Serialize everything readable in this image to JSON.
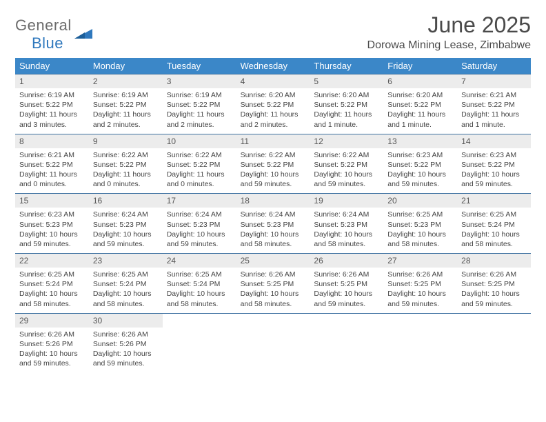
{
  "brand": {
    "word1": "General",
    "word2": "Blue",
    "accent": "#2f78bd",
    "gray": "#6b6b6b"
  },
  "title": "June 2025",
  "location": "Dorowa Mining Lease, Zimbabwe",
  "colors": {
    "header_bg": "#3b87c8",
    "header_text": "#ffffff",
    "daynum_bg": "#ececec",
    "week_border": "#3b6fa0",
    "body_text": "#444"
  },
  "weekdays": [
    "Sunday",
    "Monday",
    "Tuesday",
    "Wednesday",
    "Thursday",
    "Friday",
    "Saturday"
  ],
  "weeks": [
    [
      {
        "n": "1",
        "sr": "6:19 AM",
        "ss": "5:22 PM",
        "dl": "11 hours and 3 minutes."
      },
      {
        "n": "2",
        "sr": "6:19 AM",
        "ss": "5:22 PM",
        "dl": "11 hours and 2 minutes."
      },
      {
        "n": "3",
        "sr": "6:19 AM",
        "ss": "5:22 PM",
        "dl": "11 hours and 2 minutes."
      },
      {
        "n": "4",
        "sr": "6:20 AM",
        "ss": "5:22 PM",
        "dl": "11 hours and 2 minutes."
      },
      {
        "n": "5",
        "sr": "6:20 AM",
        "ss": "5:22 PM",
        "dl": "11 hours and 1 minute."
      },
      {
        "n": "6",
        "sr": "6:20 AM",
        "ss": "5:22 PM",
        "dl": "11 hours and 1 minute."
      },
      {
        "n": "7",
        "sr": "6:21 AM",
        "ss": "5:22 PM",
        "dl": "11 hours and 1 minute."
      }
    ],
    [
      {
        "n": "8",
        "sr": "6:21 AM",
        "ss": "5:22 PM",
        "dl": "11 hours and 0 minutes."
      },
      {
        "n": "9",
        "sr": "6:22 AM",
        "ss": "5:22 PM",
        "dl": "11 hours and 0 minutes."
      },
      {
        "n": "10",
        "sr": "6:22 AM",
        "ss": "5:22 PM",
        "dl": "11 hours and 0 minutes."
      },
      {
        "n": "11",
        "sr": "6:22 AM",
        "ss": "5:22 PM",
        "dl": "10 hours and 59 minutes."
      },
      {
        "n": "12",
        "sr": "6:22 AM",
        "ss": "5:22 PM",
        "dl": "10 hours and 59 minutes."
      },
      {
        "n": "13",
        "sr": "6:23 AM",
        "ss": "5:22 PM",
        "dl": "10 hours and 59 minutes."
      },
      {
        "n": "14",
        "sr": "6:23 AM",
        "ss": "5:22 PM",
        "dl": "10 hours and 59 minutes."
      }
    ],
    [
      {
        "n": "15",
        "sr": "6:23 AM",
        "ss": "5:23 PM",
        "dl": "10 hours and 59 minutes."
      },
      {
        "n": "16",
        "sr": "6:24 AM",
        "ss": "5:23 PM",
        "dl": "10 hours and 59 minutes."
      },
      {
        "n": "17",
        "sr": "6:24 AM",
        "ss": "5:23 PM",
        "dl": "10 hours and 59 minutes."
      },
      {
        "n": "18",
        "sr": "6:24 AM",
        "ss": "5:23 PM",
        "dl": "10 hours and 58 minutes."
      },
      {
        "n": "19",
        "sr": "6:24 AM",
        "ss": "5:23 PM",
        "dl": "10 hours and 58 minutes."
      },
      {
        "n": "20",
        "sr": "6:25 AM",
        "ss": "5:23 PM",
        "dl": "10 hours and 58 minutes."
      },
      {
        "n": "21",
        "sr": "6:25 AM",
        "ss": "5:24 PM",
        "dl": "10 hours and 58 minutes."
      }
    ],
    [
      {
        "n": "22",
        "sr": "6:25 AM",
        "ss": "5:24 PM",
        "dl": "10 hours and 58 minutes."
      },
      {
        "n": "23",
        "sr": "6:25 AM",
        "ss": "5:24 PM",
        "dl": "10 hours and 58 minutes."
      },
      {
        "n": "24",
        "sr": "6:25 AM",
        "ss": "5:24 PM",
        "dl": "10 hours and 58 minutes."
      },
      {
        "n": "25",
        "sr": "6:26 AM",
        "ss": "5:25 PM",
        "dl": "10 hours and 58 minutes."
      },
      {
        "n": "26",
        "sr": "6:26 AM",
        "ss": "5:25 PM",
        "dl": "10 hours and 59 minutes."
      },
      {
        "n": "27",
        "sr": "6:26 AM",
        "ss": "5:25 PM",
        "dl": "10 hours and 59 minutes."
      },
      {
        "n": "28",
        "sr": "6:26 AM",
        "ss": "5:25 PM",
        "dl": "10 hours and 59 minutes."
      }
    ],
    [
      {
        "n": "29",
        "sr": "6:26 AM",
        "ss": "5:26 PM",
        "dl": "10 hours and 59 minutes."
      },
      {
        "n": "30",
        "sr": "6:26 AM",
        "ss": "5:26 PM",
        "dl": "10 hours and 59 minutes."
      },
      null,
      null,
      null,
      null,
      null
    ]
  ],
  "labels": {
    "sunrise": "Sunrise:",
    "sunset": "Sunset:",
    "daylight": "Daylight:"
  }
}
